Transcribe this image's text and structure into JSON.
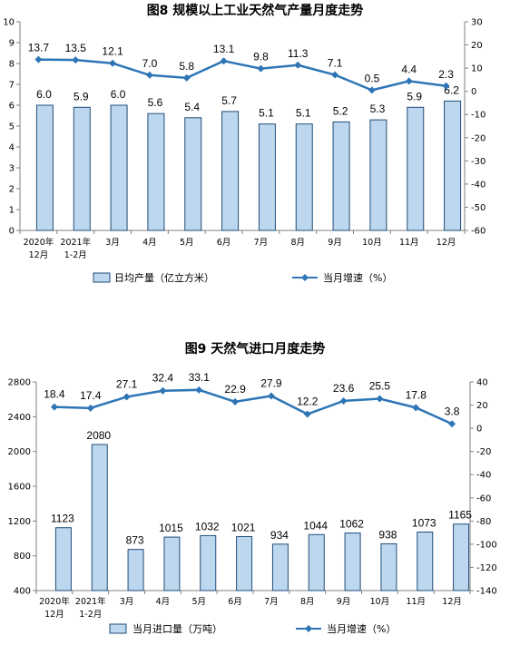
{
  "chart_data": [
    {
      "type": "bar",
      "title": "图8  规模以上工业天然气产量月度走势",
      "categories": [
        [
          "2020年",
          "12月"
        ],
        [
          "2021年",
          "1-2月"
        ],
        [
          "3月"
        ],
        [
          "4月"
        ],
        [
          "5月"
        ],
        [
          "6月"
        ],
        [
          "7月"
        ],
        [
          "8月"
        ],
        [
          "9月"
        ],
        [
          "10月"
        ],
        [
          "11月"
        ],
        [
          "12月"
        ]
      ],
      "left_axis": {
        "min": 0,
        "max": 10,
        "ticks": [
          0,
          1,
          2,
          3,
          4,
          5,
          6,
          7,
          8,
          9,
          10
        ]
      },
      "right_axis": {
        "min": -60,
        "max": 30,
        "ticks": [
          -60,
          -50,
          -40,
          -30,
          -20,
          -10,
          0,
          10,
          20,
          30
        ]
      },
      "series": [
        {
          "name": "日均产量（亿立方米",
          "type": "bar",
          "axis": "left",
          "values": [
            6.0,
            5.9,
            6.0,
            5.6,
            5.4,
            5.7,
            5.1,
            5.1,
            5.2,
            5.3,
            5.9,
            6.2
          ],
          "labels": [
            "6.0",
            "5.9",
            "6.0",
            "5.6",
            "5.4",
            "5.7",
            "5.1",
            "5.1",
            "5.2",
            "5.3",
            "5.9",
            "6.2"
          ]
        },
        {
          "name": "当月增速（%",
          "type": "line",
          "axis": "right",
          "values": [
            13.7,
            13.5,
            12.1,
            7.0,
            5.8,
            13.1,
            9.8,
            11.3,
            7.1,
            0.5,
            4.4,
            2.3
          ],
          "labels": [
            "13.7",
            "13.5",
            "12.1",
            "7.0",
            "5.8",
            "13.1",
            "9.8",
            "11.3",
            "7.1",
            "0.5",
            "4.4",
            "2.3"
          ]
        }
      ]
    },
    {
      "type": "bar",
      "title": "图9  天然气进口月度走势",
      "categories": [
        [
          "2020年",
          "12月"
        ],
        [
          "2021年",
          "1-2月"
        ],
        [
          "3月"
        ],
        [
          "4月"
        ],
        [
          "5月"
        ],
        [
          "6月"
        ],
        [
          "7月"
        ],
        [
          "8月"
        ],
        [
          "9月"
        ],
        [
          "10月"
        ],
        [
          "11月"
        ],
        [
          "12月"
        ]
      ],
      "left_axis": {
        "min": 400,
        "max": 2800,
        "ticks": [
          400,
          800,
          1200,
          1600,
          2000,
          2400,
          2800
        ]
      },
      "right_axis": {
        "min": -140,
        "max": 40,
        "ticks": [
          -140,
          -120,
          -100,
          -80,
          -60,
          -40,
          -20,
          0,
          20,
          40
        ]
      },
      "series": [
        {
          "name": "当月进口量（万吨",
          "type": "bar",
          "axis": "left",
          "values": [
            1123,
            2080,
            873,
            1015,
            1032,
            1021,
            934,
            1044,
            1062,
            938,
            1073,
            1165
          ],
          "labels": [
            "1123",
            "2080",
            "873",
            "1015",
            "1032",
            "1021",
            "934",
            "1044",
            "1062",
            "938",
            "1073",
            "1165"
          ]
        },
        {
          "name": "当月增速（%",
          "type": "line",
          "axis": "right",
          "values": [
            18.4,
            17.4,
            27.1,
            32.4,
            33.1,
            22.9,
            27.9,
            12.2,
            23.6,
            25.5,
            17.8,
            3.8
          ],
          "labels": [
            "18.4",
            "17.4",
            "27.1",
            "32.4",
            "33.1",
            "22.9",
            "27.9",
            "12.2",
            "23.6",
            "25.5",
            "17.8",
            "3.8"
          ]
        }
      ]
    }
  ],
  "colors": {
    "bar_fill": "#bdd7ee",
    "bar_stroke": "#1f4e79",
    "line": "#2e75b6",
    "axis": "#808080"
  }
}
